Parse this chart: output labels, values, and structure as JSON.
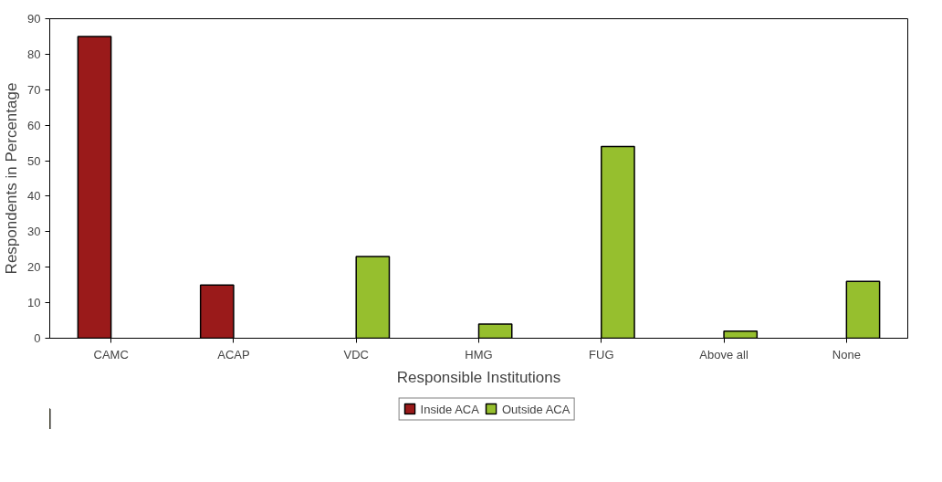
{
  "chart_data": {
    "type": "bar",
    "xlabel": "Responsible Institutions",
    "ylabel": "Respondents in Percentage",
    "categories": [
      "CAMC",
      "ACAP",
      "VDC",
      "HMG",
      "FUG",
      "Above all",
      "None"
    ],
    "series": [
      {
        "name": "Inside ACA",
        "color": "#9a1a1a",
        "values": [
          85,
          15,
          null,
          null,
          null,
          null,
          null
        ]
      },
      {
        "name": "Outside ACA",
        "color": "#96bf2e",
        "values": [
          null,
          null,
          23,
          4,
          54,
          2,
          16
        ]
      }
    ],
    "ylim": [
      0,
      90
    ],
    "yticks": [
      0,
      10,
      20,
      30,
      40,
      50,
      60,
      70,
      80,
      90
    ],
    "grid": false,
    "legend": "bottom"
  }
}
